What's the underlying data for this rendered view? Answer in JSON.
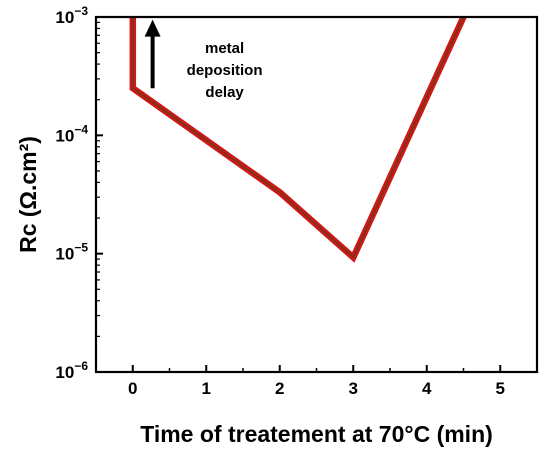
{
  "colors": {
    "line_outer": "#d01818",
    "line_inner": "#6a3a1a",
    "axis": "#000000",
    "arrow": "#000000"
  },
  "chart_data": {
    "type": "line",
    "title": "",
    "xlabel": "Time of treatement at 70°C (min)",
    "ylabel": "Rc (Ω.cm²)",
    "xlim": [
      -0.5,
      5.5
    ],
    "ylim": [
      1e-06,
      0.001
    ],
    "yscale": "log",
    "grid": false,
    "x_ticks": [
      0,
      1,
      2,
      3,
      4,
      5
    ],
    "x_tick_labels": [
      "0",
      "1",
      "2",
      "3",
      "4",
      "5"
    ],
    "y_ticks": [
      1e-06,
      1e-05,
      0.0001,
      0.001
    ],
    "y_tick_labels": [
      {
        "base": "10",
        "exp": "−6"
      },
      {
        "base": "10",
        "exp": "−5"
      },
      {
        "base": "10",
        "exp": "−4"
      },
      {
        "base": "10",
        "exp": "−3"
      }
    ],
    "series": [
      {
        "x": [
          0,
          0,
          2,
          3,
          4.5
        ],
        "y": [
          0.001,
          0.00025,
          3.3e-05,
          9.3e-06,
          0.001
        ]
      }
    ],
    "annotations": [
      {
        "lines": [
          "metal",
          "deposition",
          "delay"
        ],
        "arrow": {
          "x": 0.27,
          "y_from": 0.00025,
          "y_to": 0.00095
        }
      }
    ]
  }
}
